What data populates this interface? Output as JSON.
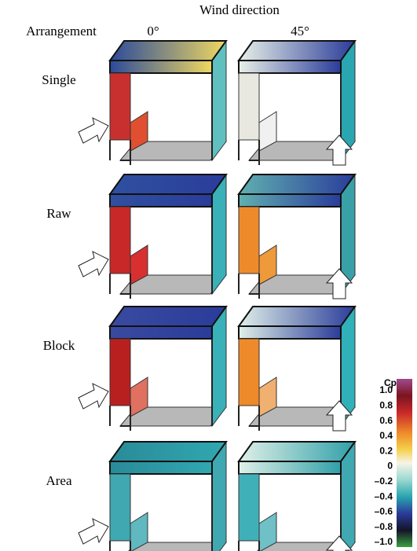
{
  "header": {
    "title": "Wind direction",
    "row_header": "Arrangement",
    "columns": [
      "0°",
      "45°"
    ]
  },
  "rows": [
    "Single",
    "Raw",
    "Block",
    "Area"
  ],
  "colorbar": {
    "label": "Cp",
    "lim": [
      -1,
      1
    ],
    "ticks": [
      {
        "value": 1,
        "label": "1.0"
      },
      0.8,
      0.6,
      0.4,
      0.2,
      0,
      {
        "value": -0.2,
        "label": "–0.2"
      },
      {
        "value": -0.4,
        "label": "–0.4"
      },
      {
        "value": -0.6,
        "label": "–0.6"
      },
      {
        "value": -0.8,
        "label": "–0.8"
      },
      {
        "value": -1,
        "label": "–1.0"
      }
    ]
  }
}
